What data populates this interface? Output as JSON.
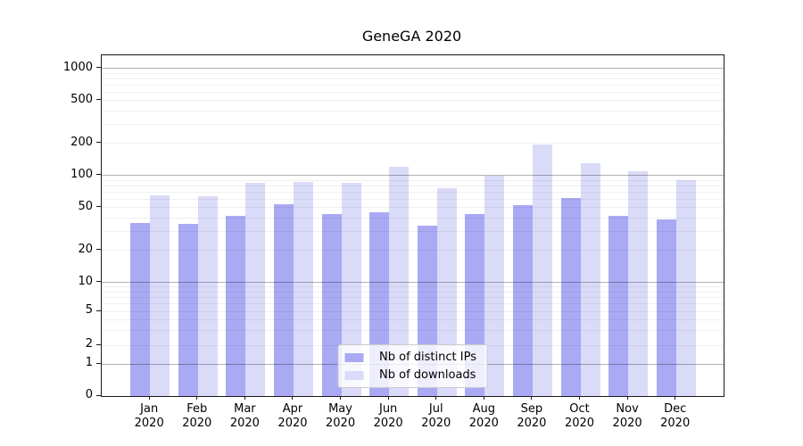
{
  "chart_data": {
    "type": "bar",
    "title": "GeneGA 2020",
    "categories": [
      "Jan",
      "Feb",
      "Mar",
      "Apr",
      "May",
      "Jun",
      "Jul",
      "Aug",
      "Sep",
      "Oct",
      "Nov",
      "Dec"
    ],
    "x_tick_second_line": "2020",
    "series": [
      {
        "name": "Nb of distinct IPs",
        "color": "#a9a9f4",
        "values": [
          36,
          35,
          42,
          54,
          44,
          45,
          34,
          44,
          53,
          61,
          42,
          39
        ]
      },
      {
        "name": "Nb of downloads",
        "color": "#dadaf9",
        "values": [
          65,
          64,
          85,
          87,
          85,
          120,
          76,
          100,
          193,
          130,
          110,
          90
        ]
      }
    ],
    "yscale": "symlog",
    "yticks": [
      0,
      1,
      2,
      5,
      10,
      20,
      50,
      100,
      200,
      500,
      1000
    ],
    "ylim": [
      0,
      1333
    ],
    "xlabel": "",
    "ylabel": "",
    "grid": {
      "major": true,
      "minor": true
    },
    "legend_position": "lower center",
    "colors": {
      "major_grid": "rgba(0,0,0,0.30)",
      "minor_grid": "rgba(0,0,0,0.06)",
      "spine": "#1a1a1a",
      "text": "#000000"
    }
  }
}
